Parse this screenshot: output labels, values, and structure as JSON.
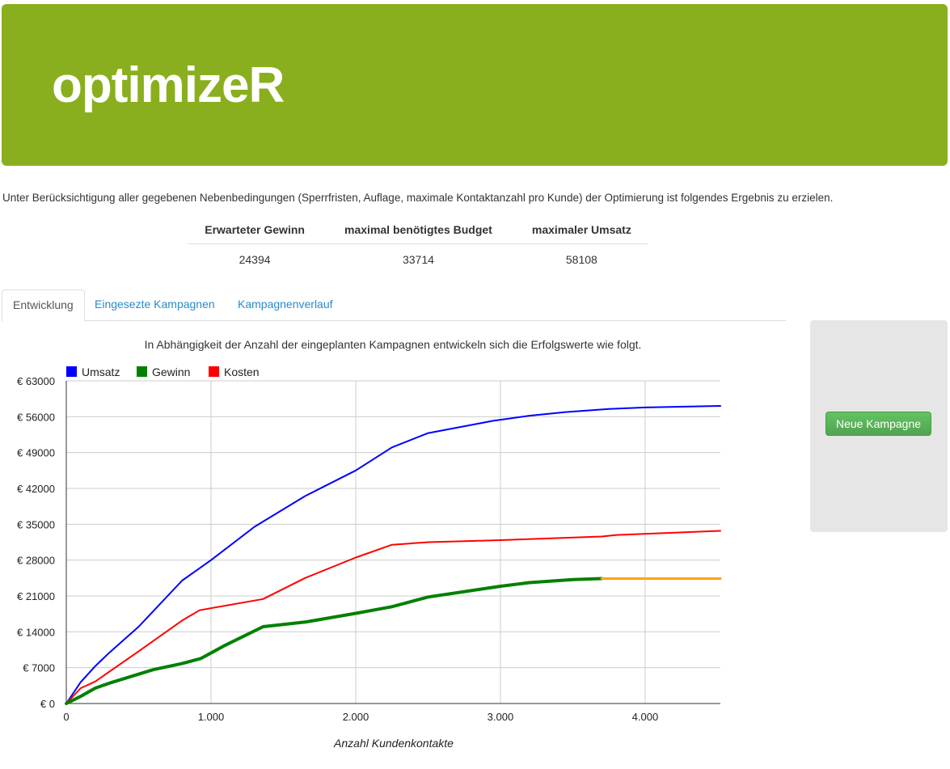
{
  "app": {
    "title": "optimizeR"
  },
  "intro_text": "Unter Berücksichtigung aller gegebenen Nebenbedingungen (Sperrfristen, Auflage, maximale Kontaktanzahl pro Kunde) der Optimierung ist folgendes Ergebnis zu erzielen.",
  "summary": {
    "headers": [
      "Erwarteter Gewinn",
      "maximal benötigtes Budget",
      "maximaler Umsatz"
    ],
    "values": [
      "24394",
      "33714",
      "58108"
    ]
  },
  "tabs": [
    {
      "label": "Entwicklung",
      "active": true
    },
    {
      "label": "Eingesezte Kampagnen",
      "active": false
    },
    {
      "label": "Kampagnenverlauf",
      "active": false
    }
  ],
  "chart_caption": "In Abhängigkeit der Anzahl der eingeplanten Kampagnen entwickeln sich die Erfolgswerte wie folgt.",
  "side_panel": {
    "new_campaign_label": "Neue Kampagne"
  },
  "colors": {
    "header": "#8aaf1e",
    "umsatz": "#0000ff",
    "gewinn": "#008000",
    "kosten": "#ff0000",
    "plateau": "#ffa500",
    "button": "#5cb85c",
    "link": "#2a8bc7"
  },
  "chart_data": {
    "type": "line",
    "xlabel": "Anzahl Kundenkontakte",
    "ylabel": "",
    "xlim": [
      0,
      4520
    ],
    "ylim": [
      0,
      63000
    ],
    "x_ticks": [
      0,
      1000,
      2000,
      3000,
      4000
    ],
    "x_tick_labels": [
      "0",
      "1.000",
      "2.000",
      "3.000",
      "4.000"
    ],
    "y_ticks": [
      0,
      7000,
      14000,
      21000,
      28000,
      35000,
      42000,
      49000,
      56000,
      63000
    ],
    "y_tick_labels": [
      "€ 0",
      "€ 7000",
      "€ 14000",
      "€ 21000",
      "€ 28000",
      "€ 35000",
      "€ 42000",
      "€ 49000",
      "€ 56000",
      "€ 63000"
    ],
    "grid": true,
    "legend_position": "top-left",
    "series": [
      {
        "name": "Umsatz",
        "color": "#0000ff",
        "width": 2,
        "points": [
          [
            0,
            0
          ],
          [
            100,
            4200
          ],
          [
            200,
            7300
          ],
          [
            300,
            10000
          ],
          [
            500,
            15000
          ],
          [
            800,
            24000
          ],
          [
            1000,
            28000
          ],
          [
            1300,
            34500
          ],
          [
            1650,
            40500
          ],
          [
            2000,
            45500
          ],
          [
            2250,
            50000
          ],
          [
            2500,
            52800
          ],
          [
            2950,
            55200
          ],
          [
            3200,
            56200
          ],
          [
            3450,
            56900
          ],
          [
            3750,
            57500
          ],
          [
            4000,
            57800
          ],
          [
            4520,
            58108
          ]
        ]
      },
      {
        "name": "Kosten",
        "color": "#ff0000",
        "width": 2,
        "points": [
          [
            0,
            0
          ],
          [
            100,
            3000
          ],
          [
            200,
            4300
          ],
          [
            500,
            10200
          ],
          [
            800,
            16200
          ],
          [
            920,
            18200
          ],
          [
            1360,
            20400
          ],
          [
            1650,
            24500
          ],
          [
            2000,
            28500
          ],
          [
            2250,
            31000
          ],
          [
            2500,
            31500
          ],
          [
            3000,
            31900
          ],
          [
            3700,
            32600
          ],
          [
            3800,
            32900
          ],
          [
            4520,
            33714
          ]
        ]
      },
      {
        "name": "Gewinn",
        "color": "#008000",
        "width": 4,
        "points": [
          [
            0,
            0
          ],
          [
            100,
            1400
          ],
          [
            200,
            3000
          ],
          [
            300,
            4000
          ],
          [
            600,
            6600
          ],
          [
            800,
            7800
          ],
          [
            930,
            8800
          ],
          [
            1100,
            11400
          ],
          [
            1360,
            15000
          ],
          [
            1650,
            15900
          ],
          [
            2000,
            17600
          ],
          [
            2250,
            18900
          ],
          [
            2500,
            20800
          ],
          [
            3000,
            22900
          ],
          [
            3200,
            23600
          ],
          [
            3500,
            24200
          ],
          [
            3700,
            24394
          ]
        ]
      },
      {
        "color": "#ffa500",
        "width": 3,
        "points": [
          [
            3700,
            24394
          ],
          [
            4520,
            24394
          ]
        ]
      }
    ]
  }
}
